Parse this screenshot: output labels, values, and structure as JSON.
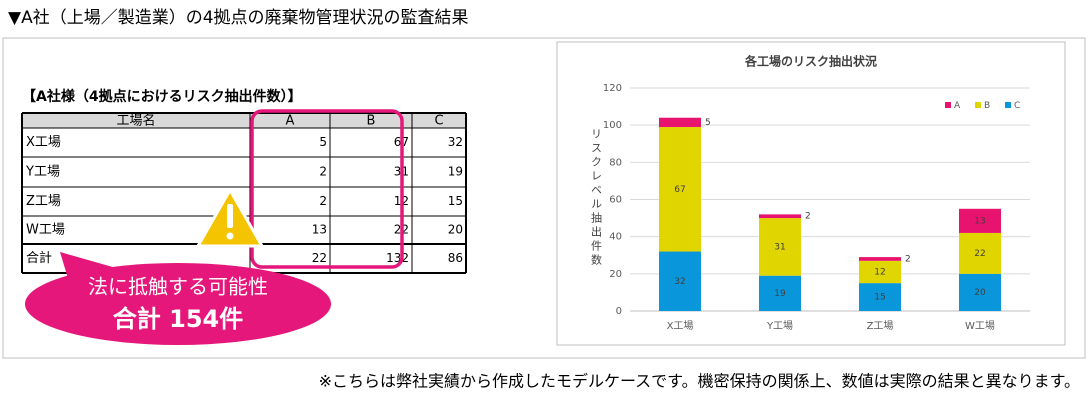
{
  "header": {
    "title": "▼A社（上場／製造業）の4拠点の廃棄物管理状況の監査結果"
  },
  "table": {
    "title": "【A社様（4拠点におけるリスク抽出件数）】",
    "header": [
      "工場名",
      "A",
      "B",
      "C"
    ],
    "rows": [
      [
        "X工場",
        5,
        67,
        32
      ],
      [
        "Y工場",
        2,
        31,
        19
      ],
      [
        "Z工場",
        2,
        12,
        15
      ],
      [
        "W工場",
        13,
        22,
        20
      ],
      [
        "合計",
        22,
        132,
        86
      ]
    ]
  },
  "callout": {
    "line1": "法に抵触する可能性",
    "line2": "合計 154件"
  },
  "chart_data": {
    "type": "stacked_bar",
    "title": "各工場のリスク抽出状況",
    "y_label": "リスクレベル抽出件数",
    "categories": [
      "X工場",
      "Y工場",
      "Z工場",
      "W工場"
    ],
    "series": [
      {
        "name": "A",
        "color": "#e8136f",
        "values": [
          5,
          2,
          2,
          13
        ]
      },
      {
        "name": "B",
        "color": "#e1d500",
        "values": [
          67,
          31,
          12,
          22
        ]
      },
      {
        "name": "C",
        "color": "#0a96da",
        "values": [
          32,
          19,
          15,
          20
        ]
      }
    ],
    "stack_order": [
      "C",
      "B",
      "A"
    ],
    "ylim": [
      0,
      120
    ],
    "yticks": [
      0,
      20,
      40,
      60,
      80,
      100,
      120
    ],
    "grid": true,
    "legend": "top-right"
  },
  "footnote": "※こちらは弊社実績から作成したモデルケースです。機密保持の関係上、数値は実際の結果と異なります。"
}
